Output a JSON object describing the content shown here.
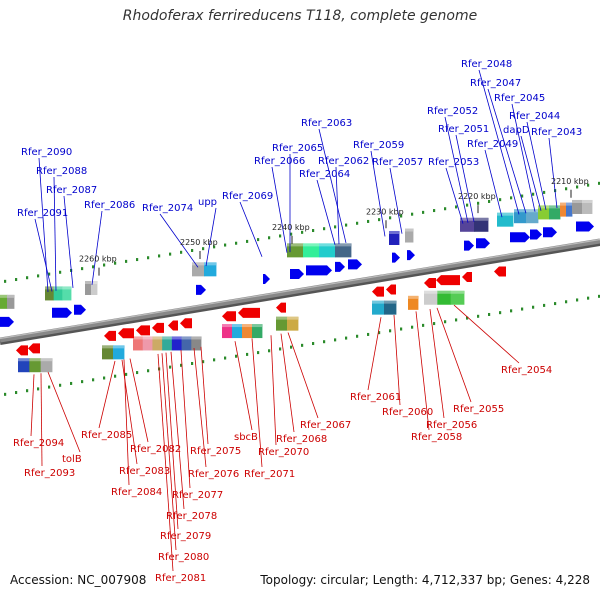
{
  "title": "Rhodoferax ferrireducens T118, complete genome",
  "footer": {
    "accession": "Accession: NC_007908",
    "summary": "Topology: circular; Length: 4,712,337 bp; Genes: 4,228"
  },
  "colors": {
    "forward_label": "#0000cc",
    "reverse_label": "#cc0000",
    "forward_gene": "#0000ee",
    "reverse_gene": "#ee0000",
    "backbone": "#888888",
    "dots": "#2a8a2a"
  },
  "ticks": [
    {
      "label": "2210 kbp"
    },
    {
      "label": "2220 kbp"
    },
    {
      "label": "2230 kbp"
    },
    {
      "label": "2240 kbp"
    },
    {
      "label": "2250 kbp"
    },
    {
      "label": "2260 kbp"
    }
  ],
  "forward_labels": [
    "Rfer_2048",
    "Rfer_2047",
    "Rfer_2045",
    "Rfer_2052",
    "Rfer_2044",
    "Rfer_2051",
    "dapD",
    "Rfer_2043",
    "Rfer_2049",
    "Rfer_2063",
    "Rfer_2059",
    "Rfer_2065",
    "Rfer_2066",
    "Rfer_2062",
    "Rfer_2057",
    "Rfer_2053",
    "Rfer_2064",
    "Rfer_2090",
    "Rfer_2088",
    "Rfer_2087",
    "Rfer_2091",
    "Rfer_2086",
    "Rfer_2074",
    "upp",
    "Rfer_2069"
  ],
  "reverse_labels": [
    "Rfer_2054",
    "Rfer_2061",
    "Rfer_2060",
    "Rfer_2055",
    "Rfer_2056",
    "Rfer_2058",
    "Rfer_2067",
    "Rfer_2068",
    "Rfer_2070",
    "sbcB",
    "Rfer_2071",
    "Rfer_2094",
    "tolB",
    "Rfer_2093",
    "Rfer_2085",
    "Rfer_2082",
    "Rfer_2083",
    "Rfer_2084",
    "Rfer_2075",
    "Rfer_2076",
    "Rfer_2077",
    "Rfer_2078",
    "Rfer_2079",
    "Rfer_2080",
    "Rfer_2081"
  ]
}
